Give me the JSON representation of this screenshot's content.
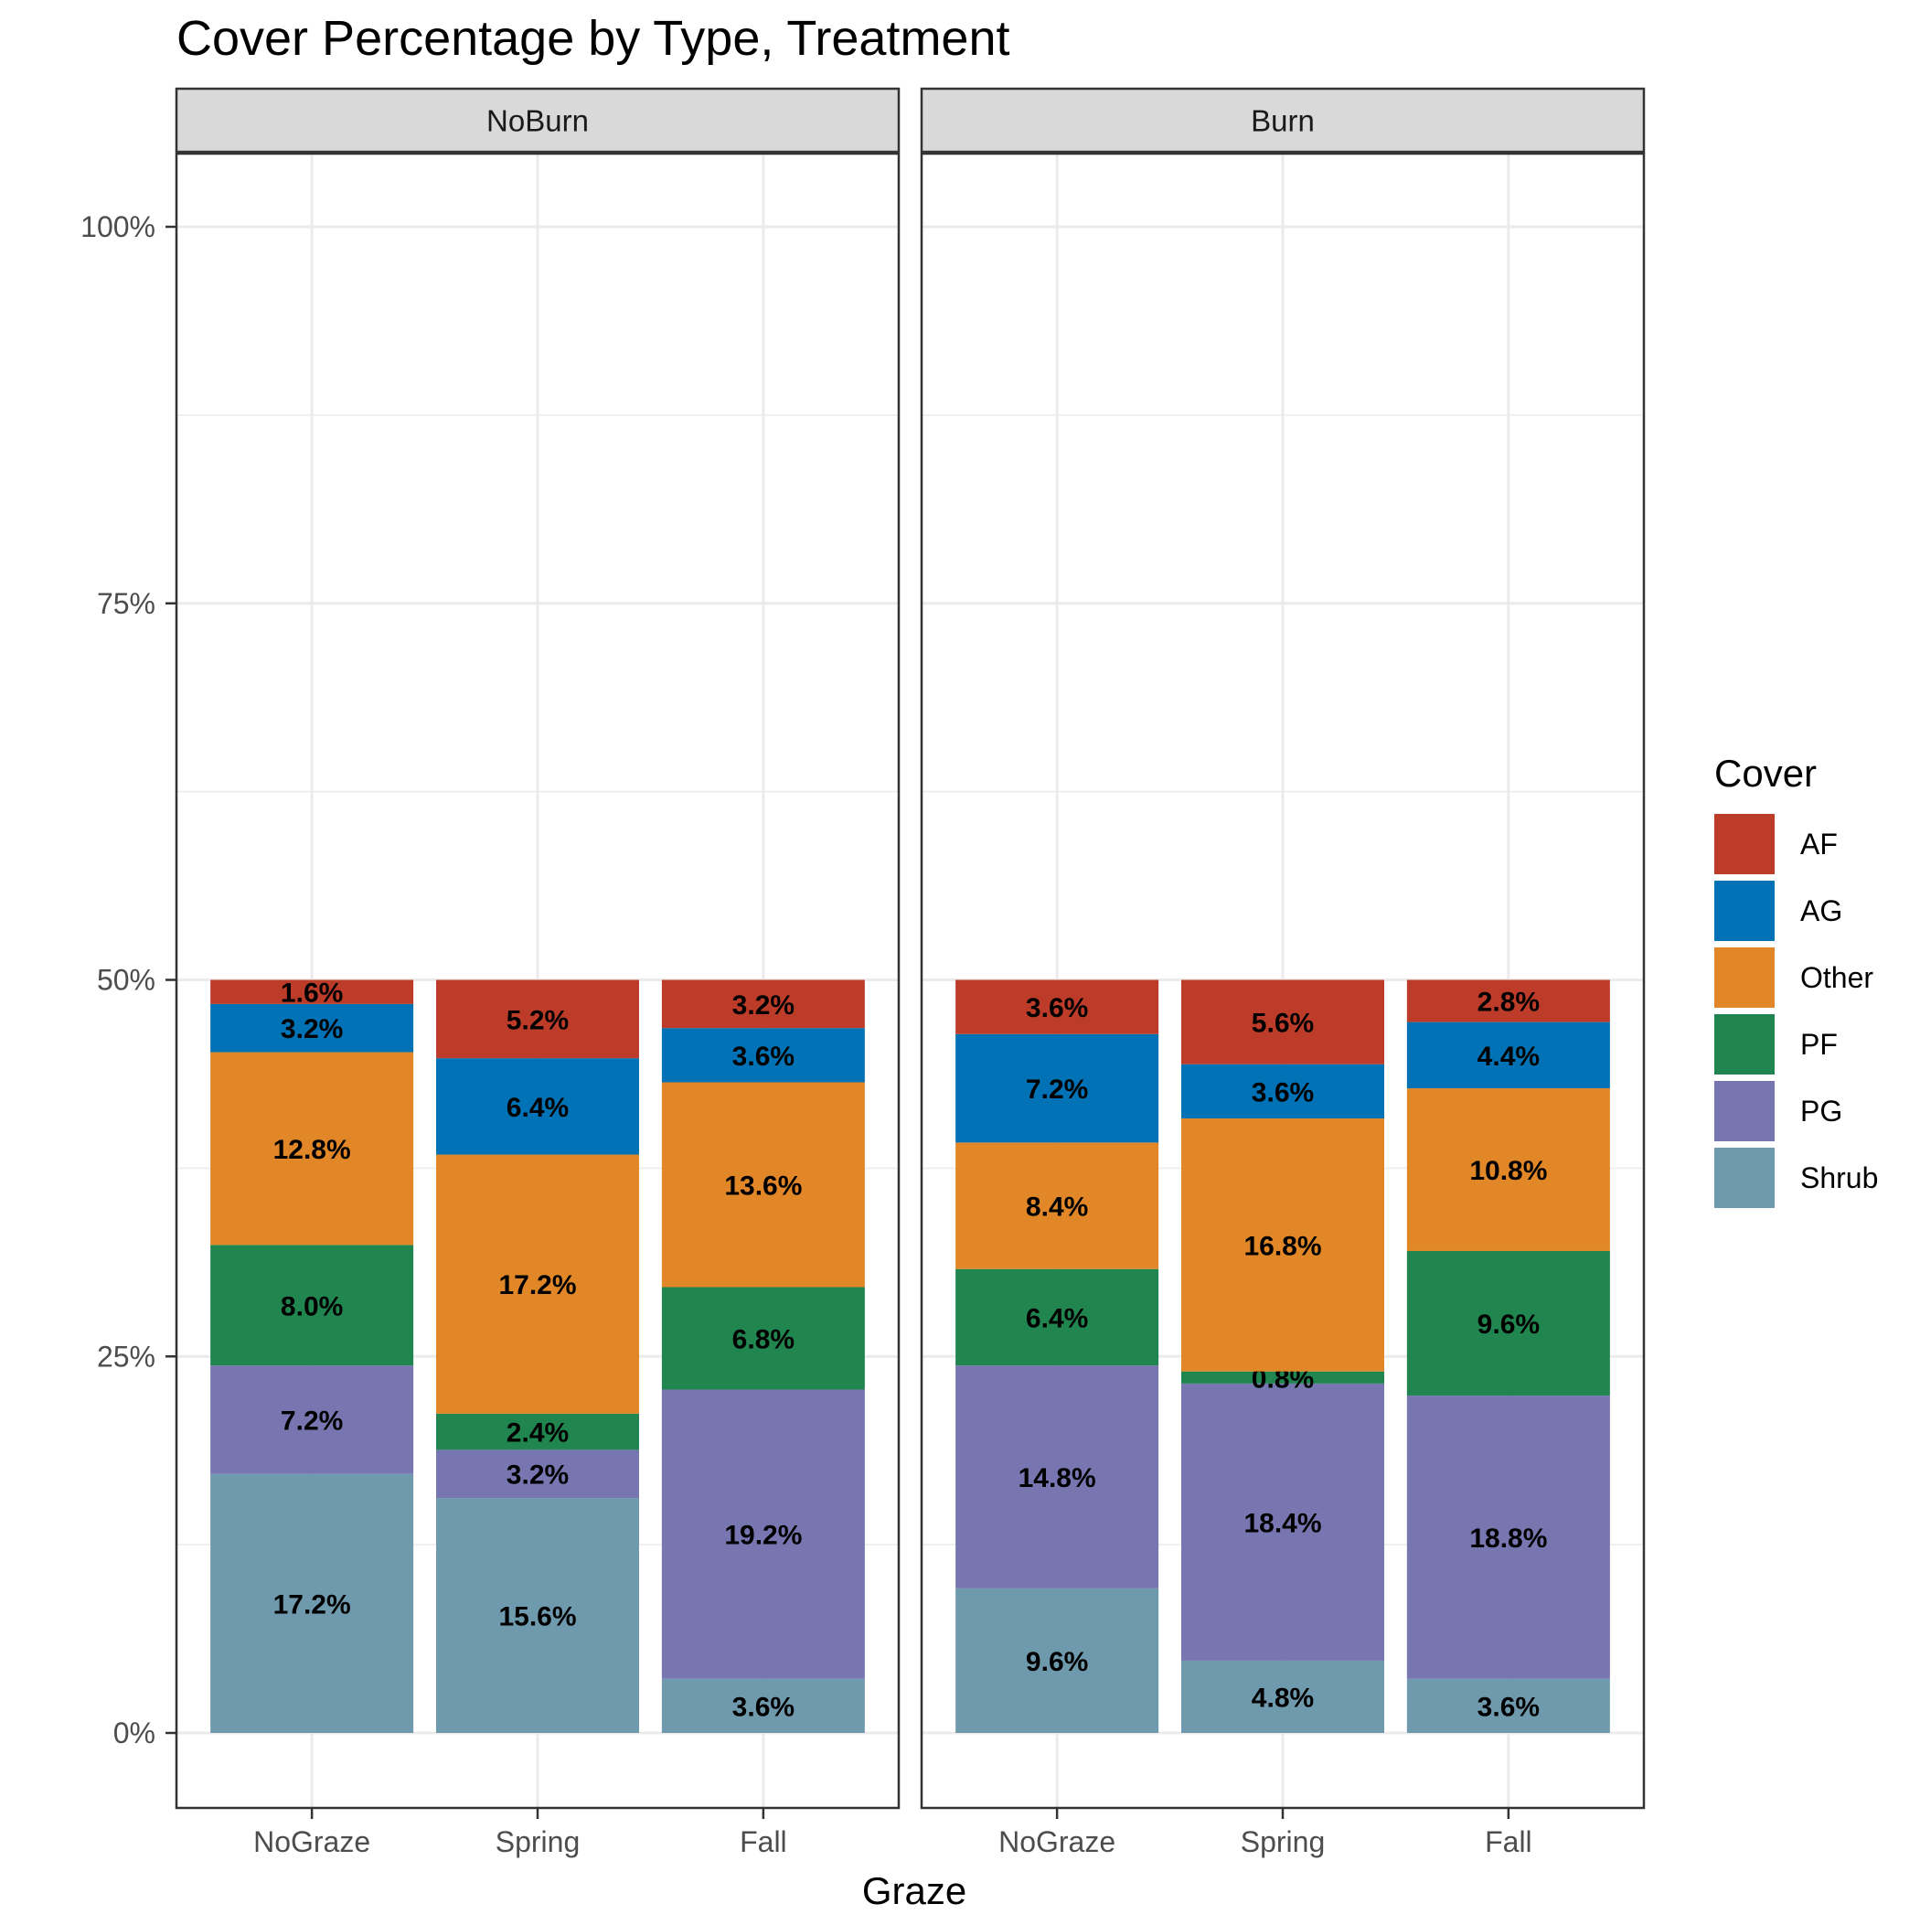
{
  "chart_data": {
    "type": "bar",
    "stacked": true,
    "normalized": true,
    "title": "Cover Percentage by Type, Treatment",
    "xlabel": "Graze",
    "ylabel": "",
    "ylim": [
      0,
      100
    ],
    "y_ticks": [
      "0%",
      "25%",
      "50%",
      "75%",
      "100%"
    ],
    "categories": [
      "NoGraze",
      "Spring",
      "Fall"
    ],
    "legend": {
      "title": "Cover",
      "placement": "right",
      "entries": [
        "AF",
        "AG",
        "Other",
        "PF",
        "PG",
        "Shrub"
      ]
    },
    "colors": {
      "AF": "#bc3c29",
      "AG": "#0072b5",
      "Other": "#e18727",
      "PF": "#20854e",
      "PG": "#7876b1",
      "Shrub": "#6f99ad"
    },
    "grid": true,
    "panels": [
      {
        "name": "NoBurn",
        "series": [
          {
            "name": "Shrub",
            "values": [
              17.2,
              15.6,
              3.6
            ],
            "labels": [
              "17.2%",
              "15.6%",
              "3.6%"
            ]
          },
          {
            "name": "PG",
            "values": [
              7.2,
              3.2,
              19.2
            ],
            "labels": [
              "7.2%",
              "3.2%",
              "19.2%"
            ]
          },
          {
            "name": "PF",
            "values": [
              8.0,
              2.4,
              6.8
            ],
            "labels": [
              "8.0%",
              "2.4%",
              "6.8%"
            ]
          },
          {
            "name": "Other",
            "values": [
              12.8,
              17.2,
              13.6
            ],
            "labels": [
              "12.8%",
              "17.2%",
              "13.6%"
            ]
          },
          {
            "name": "AG",
            "values": [
              3.2,
              6.4,
              3.6
            ],
            "labels": [
              "3.2%",
              "6.4%",
              "3.6%"
            ]
          },
          {
            "name": "AF",
            "values": [
              1.6,
              5.2,
              3.2
            ],
            "labels": [
              "1.6%",
              "5.2%",
              "3.2%"
            ]
          }
        ]
      },
      {
        "name": "Burn",
        "series": [
          {
            "name": "Shrub",
            "values": [
              9.6,
              4.8,
              3.6
            ],
            "labels": [
              "9.6%",
              "4.8%",
              "3.6%"
            ]
          },
          {
            "name": "PG",
            "values": [
              14.8,
              18.4,
              18.8
            ],
            "labels": [
              "14.8%",
              "18.4%",
              "18.8%"
            ]
          },
          {
            "name": "PF",
            "values": [
              6.4,
              0.8,
              9.6
            ],
            "labels": [
              "6.4%",
              "0.8%",
              "9.6%"
            ]
          },
          {
            "name": "Other",
            "values": [
              8.4,
              16.8,
              10.8
            ],
            "labels": [
              "8.4%",
              "16.8%",
              "10.8%"
            ]
          },
          {
            "name": "AG",
            "values": [
              7.2,
              3.6,
              4.4
            ],
            "labels": [
              "7.2%",
              "3.6%",
              "4.4%"
            ]
          },
          {
            "name": "AF",
            "values": [
              3.6,
              5.6,
              2.8
            ],
            "labels": [
              "3.6%",
              "5.6%",
              "2.8%"
            ]
          }
        ]
      }
    ]
  }
}
